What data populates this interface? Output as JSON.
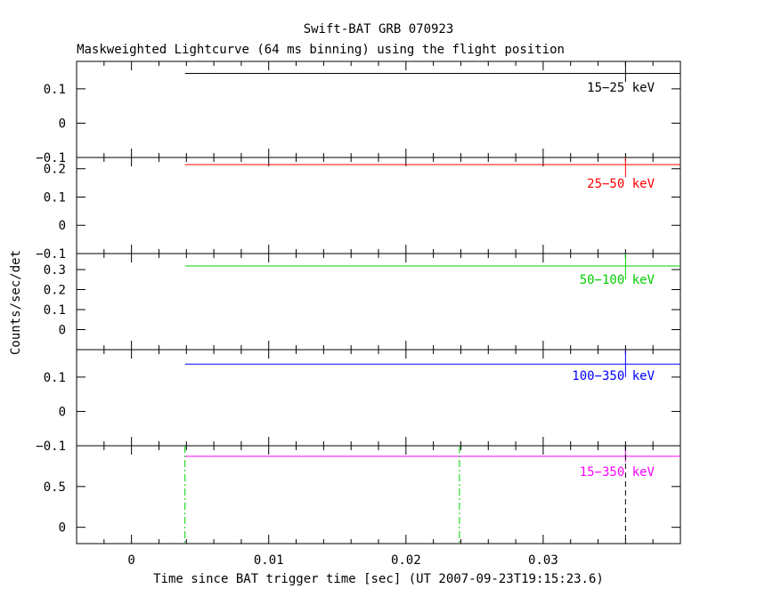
{
  "chart_data": {
    "type": "line",
    "title": "Swift-BAT GRB 070923",
    "subtitle": "Maskweighted Lightcurve (64 ms binning) using the flight position",
    "xlabel": "Time since BAT trigger time [sec] (UT 2007-09-23T19:15:23.6)",
    "ylabel": "Counts/sec/det",
    "xlim": [
      -0.004,
      0.04
    ],
    "x_ticks": [
      0,
      0.01,
      0.02,
      0.03
    ],
    "x_tick_labels": [
      "0",
      "0.01",
      "0.02",
      "0.03"
    ],
    "panels": [
      {
        "band": "15-25 keV",
        "band_label": "15−25 keV",
        "color": "#000000",
        "ylim": [
          -0.1,
          0.18
        ],
        "y_ticks": [
          -0.1,
          0,
          0.1
        ],
        "y_tick_labels": [
          "−0.1",
          "0",
          "0.1"
        ],
        "segments": [
          {
            "x_start": 0.0039,
            "x_end": 0.04,
            "y": 0.145
          }
        ],
        "error_bar": {
          "x": 0.036,
          "y_low": 0.12,
          "y_high": 0.18
        }
      },
      {
        "band": "25-50 keV",
        "band_label": "25−50 keV",
        "color": "#ff0000",
        "ylim": [
          -0.1,
          0.24
        ],
        "y_ticks": [
          -0.1,
          0,
          0.1,
          0.2
        ],
        "y_tick_labels": [
          "−0.1",
          "0",
          "0.1",
          "0.2"
        ],
        "segments": [
          {
            "x_start": 0.0039,
            "x_end": 0.04,
            "y": 0.215
          }
        ],
        "error_bar": {
          "x": 0.036,
          "y_low": 0.17,
          "y_high": 0.24
        }
      },
      {
        "band": "50-100 keV",
        "band_label": "50−100 keV",
        "color": "#00cc00",
        "ylim": [
          -0.1,
          0.38
        ],
        "y_ticks": [
          0,
          0.1,
          0.2,
          0.3
        ],
        "y_tick_labels": [
          "0",
          "0.1",
          "0.2",
          "0.3"
        ],
        "segments": [
          {
            "x_start": 0.0039,
            "x_end": 0.04,
            "y": 0.318
          }
        ],
        "error_bar": {
          "x": 0.036,
          "y_low": 0.25,
          "y_high": 0.38
        }
      },
      {
        "band": "100-350 keV",
        "band_label": "100−350 keV",
        "color": "#0000ff",
        "ylim": [
          -0.1,
          0.18
        ],
        "y_ticks": [
          -0.1,
          0,
          0.1
        ],
        "y_tick_labels": [
          "−0.1",
          "0",
          "0.1"
        ],
        "segments": [
          {
            "x_start": 0.0039,
            "x_end": 0.04,
            "y": 0.138
          }
        ],
        "error_bar": {
          "x": 0.036,
          "y_low": 0.1,
          "y_high": 0.18
        }
      },
      {
        "band": "15-350 keV",
        "band_label": "15−350 keV",
        "color": "#ff00ff",
        "ylim": [
          -0.2,
          1.0
        ],
        "y_ticks": [
          0,
          0.5
        ],
        "y_tick_labels": [
          "0",
          "0.5"
        ],
        "segments": [
          {
            "x_start": 0.0039,
            "x_end": 0.04,
            "y": 0.87
          }
        ],
        "error_bar": {
          "x": 0.036,
          "y_low": 0.8,
          "y_high": 1.0
        },
        "vlines": [
          {
            "x": 0.0039,
            "style": "dashdot",
            "color": "#00cc00"
          },
          {
            "x": 0.0239,
            "style": "dashdot",
            "color": "#00cc00"
          },
          {
            "x": 0.036,
            "style": "dashed",
            "color": "#000000"
          }
        ]
      }
    ]
  }
}
